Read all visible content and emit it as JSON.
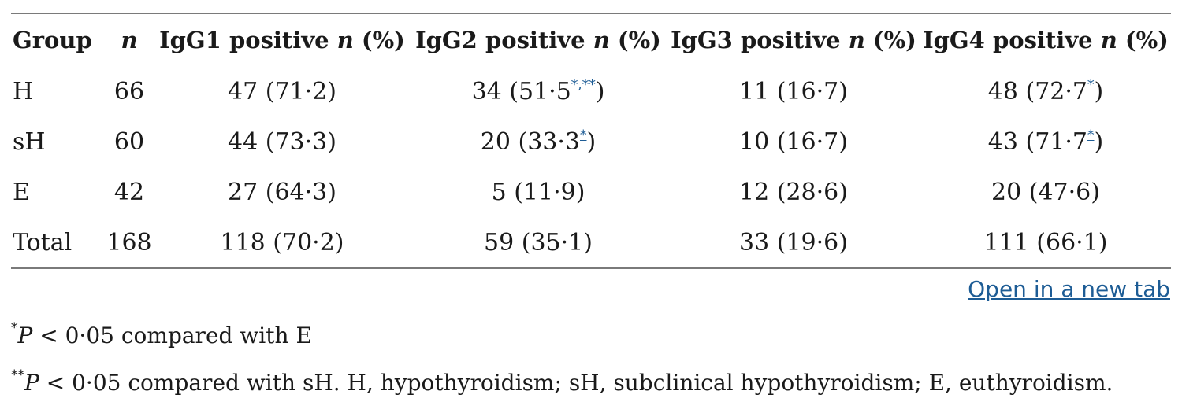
{
  "table": {
    "headers": {
      "group": "Group",
      "n": "n",
      "igg1_pre": "IgG1 positive ",
      "igg2_pre": "IgG2 positive ",
      "igg3_pre": "IgG3 positive ",
      "igg4_pre": "IgG4 positive ",
      "n_italic": "n",
      "pct_suffix": " (%)"
    },
    "rows": [
      {
        "group": "H",
        "n": "66",
        "igg1": "47 (71·2)",
        "igg2_pre": "34 (51·5",
        "igg2_fn1": "*",
        "igg2_sep": ",",
        "igg2_fn2": "**",
        "igg2_post": ")",
        "igg3": "11 (16·7)",
        "igg4_pre": "48 (72·7",
        "igg4_fn": "*",
        "igg4_post": ")"
      },
      {
        "group": "sH",
        "n": "60",
        "igg1": "44 (73·3)",
        "igg2_pre": "20 (33·3",
        "igg2_fn": "*",
        "igg2_post": ")",
        "igg3": "10 (16·7)",
        "igg4_pre": "43 (71·7",
        "igg4_fn": "*",
        "igg4_post": ")"
      },
      {
        "group": "E",
        "n": "42",
        "igg1": "27 (64·3)",
        "igg2": "5 (11·9)",
        "igg3": "12 (28·6)",
        "igg4": "20 (47·6)"
      },
      {
        "group": "Total",
        "n": "168",
        "igg1": "118 (70·2)",
        "igg2": "59 (35·1)",
        "igg3": "33 (19·6)",
        "igg4": "111 (66·1)"
      }
    ]
  },
  "open_link": "Open in a new tab",
  "footnotes": [
    {
      "marker": "*",
      "p_italic": "P",
      "text": " < 0·05 compared with E"
    },
    {
      "marker": "**",
      "p_italic": "P",
      "text": " < 0·05 compared with sH. H, hypothyroidism; sH, subclinical hypothyroidism; E, euthyroidism."
    }
  ]
}
